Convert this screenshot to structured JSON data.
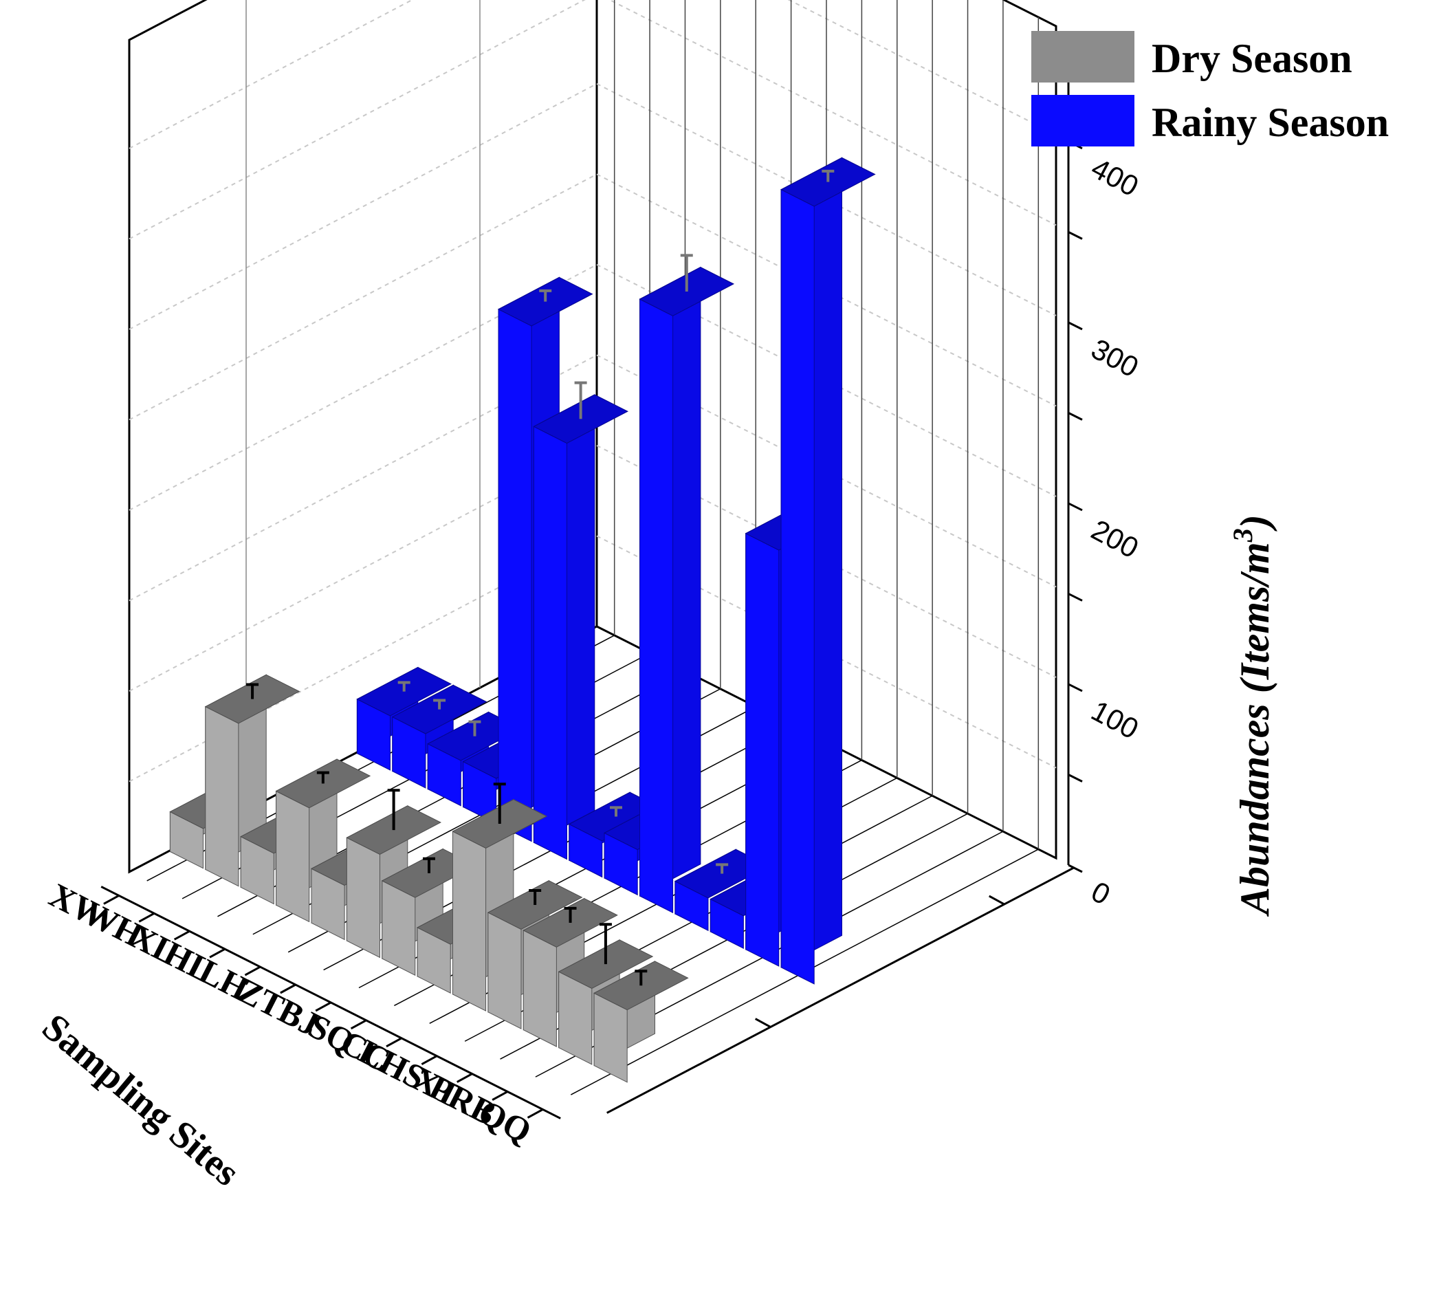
{
  "chart_data": {
    "type": "bar",
    "title": "",
    "xlabel": "Sampling Sites",
    "ylabel": "",
    "zlabel_main": "Abundances (Items/m",
    "zlabel_sup": "3",
    "zlabel_close": ")",
    "categories": [
      "XW",
      "WH",
      "XL",
      "HL",
      "LH",
      "ZT",
      "BJ",
      "SQ",
      "CC",
      "LHS",
      "XT",
      "PRB",
      "QQ"
    ],
    "series": [
      {
        "name": "Dry Season",
        "color": "#8c8c8c",
        "values": [
          22,
          90,
          28,
          63,
          30,
          57,
          43,
          27,
          90,
          55,
          55,
          42,
          40
        ],
        "errors": [
          18,
          8,
          8,
          6,
          10,
          22,
          8,
          12,
          22,
          8,
          8,
          22,
          8
        ]
      },
      {
        "name": "Rainy Season",
        "color": "#0a0aff",
        "values": [
          30,
          30,
          25,
          25,
          285,
          230,
          20,
          25,
          330,
          18,
          18,
          230,
          430
        ],
        "errors": [
          5,
          5,
          8,
          5,
          6,
          20,
          5,
          6,
          20,
          5,
          5,
          5,
          6
        ]
      }
    ],
    "zlim": [
      0,
      460
    ],
    "z_ticks": [
      "0",
      "100",
      "200",
      "300",
      "400"
    ],
    "grid": true,
    "legend_position": "top-right"
  }
}
